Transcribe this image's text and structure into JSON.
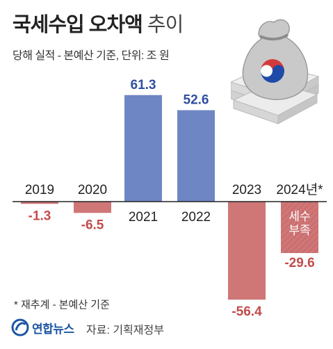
{
  "title_bold": "국세수입 오차액",
  "title_light": "추이",
  "subtitle": "당해 실적 - 본예산 기준, 단위: 조 원",
  "footnote": "* 재추계 - 본예산 기준",
  "logo_text": "연합뉴스",
  "source": "자료: 기획재정부",
  "colors": {
    "positive": "#6f86c4",
    "negative": "#cf7677",
    "negative_hatch": "#c46466",
    "value_pos": "#2f4f9f",
    "value_neg": "#c24b4d"
  },
  "chart_data": {
    "type": "bar",
    "title": "국세수입 오차액 추이",
    "categories": [
      "2019",
      "2020",
      "2021",
      "2022",
      "2023",
      "2024년*"
    ],
    "values": [
      -1.3,
      -6.5,
      61.3,
      52.6,
      -56.4,
      -29.6
    ],
    "value_labels": [
      "-1.3",
      "-6.5",
      "61.3",
      "52.6",
      "-56.4",
      "-29.6"
    ],
    "bar_annotation": {
      "index": 5,
      "text": [
        "세수",
        "부족"
      ]
    },
    "unit": "조 원",
    "ylim": [
      -60,
      65
    ],
    "grid": false
  }
}
